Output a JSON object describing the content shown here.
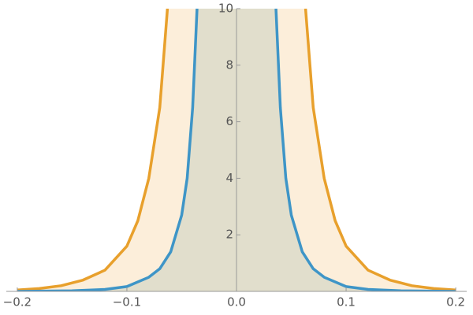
{
  "chart_data": {
    "type": "area",
    "xlim": [
      -0.21,
      0.21
    ],
    "ylim": [
      0,
      10
    ],
    "xticks": [
      {
        "value": -0.2,
        "label": "−0.2"
      },
      {
        "value": -0.1,
        "label": "−0.1"
      },
      {
        "value": 0,
        "label": "0.0"
      },
      {
        "value": 0.1,
        "label": "0.1"
      },
      {
        "value": 0.2,
        "label": "0.2"
      }
    ],
    "yticks": [
      2,
      4,
      6,
      8,
      10
    ],
    "series": [
      {
        "color": "#e8a02c",
        "fill": "#fcebd3",
        "x": [
          -0.2,
          -0.18,
          -0.16,
          -0.14,
          -0.12,
          -0.1,
          -0.09,
          -0.08,
          -0.07,
          -0.063,
          0,
          0.063,
          0.07,
          0.08,
          0.09,
          0.1,
          0.12,
          0.14,
          0.16,
          0.18,
          0.2
        ],
        "values": [
          0.05,
          0.1,
          0.2,
          0.4,
          0.75,
          1.6,
          2.5,
          4,
          6.5,
          10,
          null,
          10,
          6.5,
          4,
          2.5,
          1.6,
          0.75,
          0.4,
          0.2,
          0.1,
          0.05
        ]
      },
      {
        "color": "#3e95c7",
        "fill": "#dcdbc9",
        "x": [
          -0.2,
          -0.15,
          -0.12,
          -0.1,
          -0.08,
          -0.07,
          -0.06,
          -0.05,
          -0.045,
          -0.04,
          -0.036,
          0,
          0.036,
          0.04,
          0.045,
          0.05,
          0.06,
          0.07,
          0.08,
          0.1,
          0.12,
          0.15,
          0.2
        ],
        "values": [
          0,
          0.02,
          0.07,
          0.17,
          0.5,
          0.8,
          1.4,
          2.7,
          4,
          6.5,
          10,
          null,
          10,
          6.5,
          4,
          2.7,
          1.4,
          0.8,
          0.5,
          0.17,
          0.07,
          0.02,
          0
        ]
      }
    ]
  }
}
